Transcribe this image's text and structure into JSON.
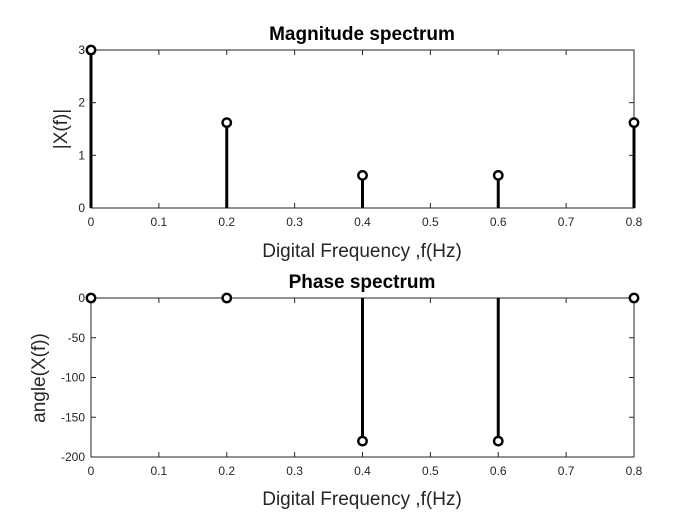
{
  "colors": {
    "background": "#ffffff",
    "axis": "#262626",
    "stem": "#000000"
  },
  "chart_data": [
    {
      "type": "stem",
      "title": "Magnitude spectrum",
      "xlabel": "Digital Frequency ,f(Hz)",
      "ylabel": "|X(f)|",
      "x": [
        0,
        0.2,
        0.4,
        0.6,
        0.8
      ],
      "values": [
        3,
        1.62,
        0.62,
        0.62,
        1.62
      ],
      "xlim": [
        0,
        0.8
      ],
      "ylim": [
        0,
        3
      ],
      "xticks": [
        "0",
        "0.1",
        "0.2",
        "0.3",
        "0.4",
        "0.5",
        "0.6",
        "0.7",
        "0.8"
      ],
      "yticks": [
        "0",
        "1",
        "2",
        "3"
      ],
      "grid": false,
      "marker": "circle"
    },
    {
      "type": "stem",
      "title": "Phase  spectrum",
      "xlabel": "Digital Frequency ,f(Hz)",
      "ylabel": "angle(X(f))",
      "x": [
        0,
        0.2,
        0.4,
        0.6,
        0.8
      ],
      "values": [
        0,
        0,
        -180,
        -180,
        0
      ],
      "xlim": [
        0,
        0.8
      ],
      "ylim": [
        -200,
        0
      ],
      "xticks": [
        "0",
        "0.1",
        "0.2",
        "0.3",
        "0.4",
        "0.5",
        "0.6",
        "0.7",
        "0.8"
      ],
      "yticks": [
        "-200",
        "-150",
        "-100",
        "-50",
        "0"
      ],
      "grid": false,
      "marker": "circle"
    }
  ]
}
